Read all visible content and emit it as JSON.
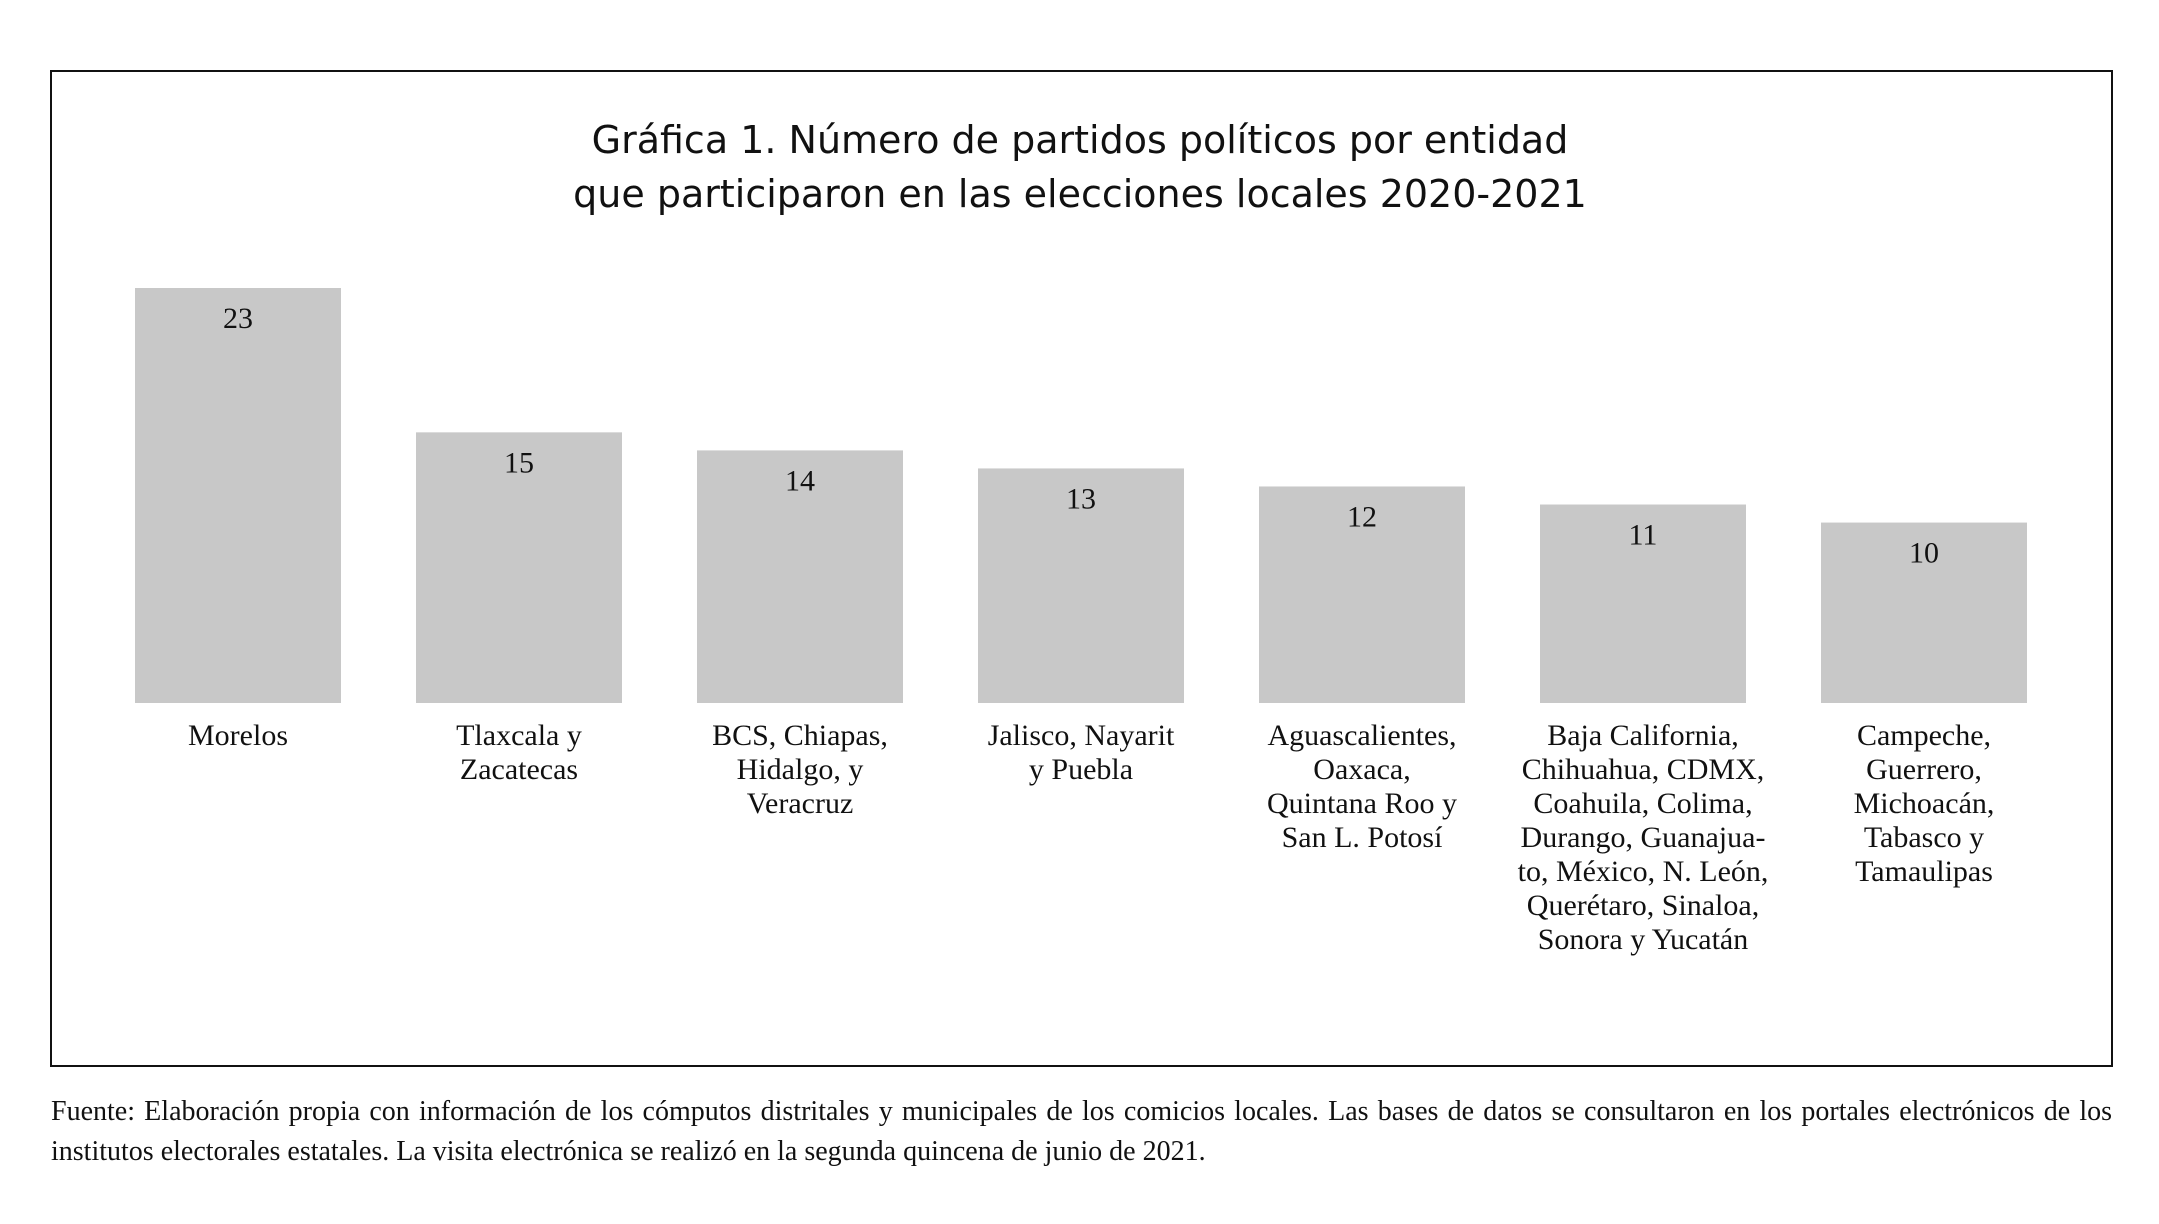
{
  "chart_data": {
    "type": "bar",
    "title": "Gráfica 1. Número de partidos políticos por entidad\nque participaron en las elecciones locales 2020-2021",
    "categories": [
      "Morelos",
      "Tlaxcala y\nZacatecas",
      "BCS, Chiapas,\nHidalgo, y\nVeracruz",
      "Jalisco, Nayarit\ny Puebla",
      "Aguascalientes,\nOaxaca,\nQuintana Roo y\nSan L. Potosí",
      "Baja California,\nChihuahua, CDMX,\nCoahuila, Colima,\nDurango, Guanajua-\nto, México, N. León,\nQuerétaro, Sinaloa,\nSonora y Yucatán",
      "Campeche,\nGuerrero,\nMichoacán,\nTabasco y\nTamaulipas"
    ],
    "values": [
      23,
      15,
      14,
      13,
      12,
      11,
      10
    ],
    "color": "#c8c8c8",
    "note": "Fuente: Elaboración propia con información de los cómputos distritales y municipales de los comicios locales. Las bases de datos se consultaron en los portales electrónicos de los institutos electorales estatales. La visita electrónica se realizó en la segunda quincena de junio de 2021."
  }
}
